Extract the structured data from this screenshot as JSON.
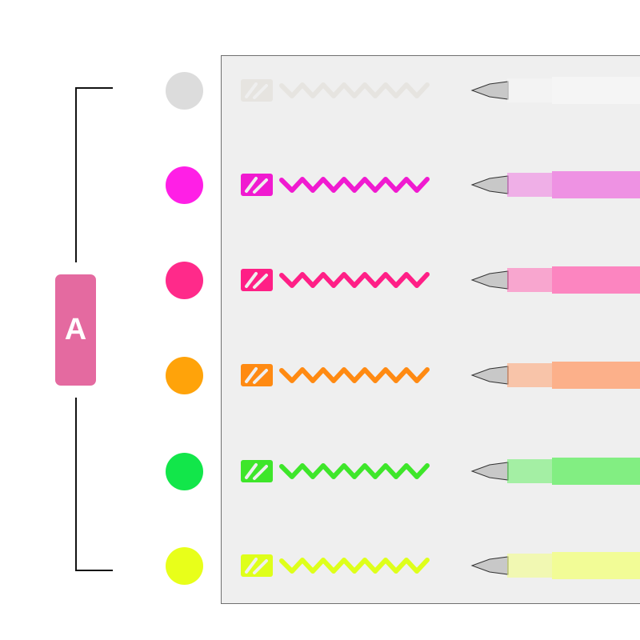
{
  "badge": {
    "label": "A",
    "color": "#e46aa0"
  },
  "colors": [
    {
      "name": "white",
      "swatch": "#dcdcdc",
      "ink": "#e6e4e0",
      "barrel": "#f6f6f6"
    },
    {
      "name": "magenta",
      "swatch": "#ff1fe6",
      "ink": "#f01ad0",
      "barrel": "#ee7ae0"
    },
    {
      "name": "pink",
      "swatch": "#ff2a8a",
      "ink": "#ff1f86",
      "barrel": "#ff6ab4"
    },
    {
      "name": "orange",
      "swatch": "#ffa30a",
      "ink": "#ff8a12",
      "barrel": "#ffa070"
    },
    {
      "name": "green",
      "swatch": "#12e64a",
      "ink": "#3ee62a",
      "barrel": "#66ee66"
    },
    {
      "name": "yellow",
      "swatch": "#e8ff1a",
      "ink": "#deff1a",
      "barrel": "#f2ff80"
    }
  ]
}
